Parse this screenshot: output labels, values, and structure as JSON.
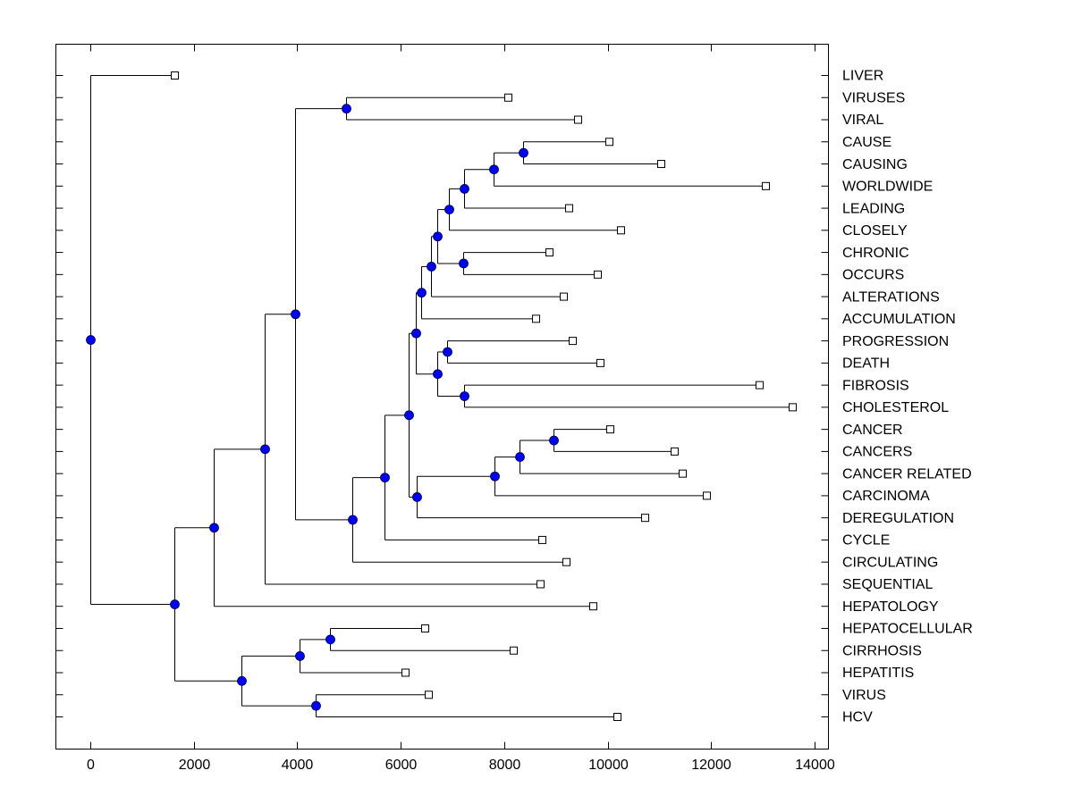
{
  "chart_data": {
    "type": "dendrogram",
    "title": "",
    "xlabel": "",
    "ylabel": "",
    "xlim": [
      -700,
      14250
    ],
    "x_ticks": [
      0,
      2000,
      4000,
      6000,
      8000,
      10000,
      12000,
      14000
    ],
    "x_tick_labels": [
      "0",
      "2000",
      "4000",
      "6000",
      "8000",
      "10000",
      "12000",
      "14000"
    ],
    "grid": false,
    "node_color": "#0000ff",
    "leaf_marker": "open-square",
    "leaves": [
      {
        "label": "LIVER",
        "x": 1625
      },
      {
        "label": "VIRUSES",
        "x": 8070
      },
      {
        "label": "VIRAL",
        "x": 9420
      },
      {
        "label": "CAUSE",
        "x": 10025
      },
      {
        "label": "CAUSING",
        "x": 11030
      },
      {
        "label": "WORLDWIDE",
        "x": 13050
      },
      {
        "label": "LEADING",
        "x": 9245
      },
      {
        "label": "CLOSELY",
        "x": 10250
      },
      {
        "label": "CHRONIC",
        "x": 8865
      },
      {
        "label": "OCCURS",
        "x": 9800
      },
      {
        "label": "ALTERATIONS",
        "x": 9145
      },
      {
        "label": "ACCUMULATION",
        "x": 8605
      },
      {
        "label": "PROGRESSION",
        "x": 9315
      },
      {
        "label": "DEATH",
        "x": 9850
      },
      {
        "label": "FIBROSIS",
        "x": 12930
      },
      {
        "label": "CHOLESTEROL",
        "x": 13565
      },
      {
        "label": "CANCER",
        "x": 10040
      },
      {
        "label": "CANCERS",
        "x": 11285
      },
      {
        "label": "CANCER RELATED",
        "x": 11440
      },
      {
        "label": "CARCINOMA",
        "x": 11910
      },
      {
        "label": "DEREGULATION",
        "x": 10715
      },
      {
        "label": "CYCLE",
        "x": 8730
      },
      {
        "label": "CIRCULATING",
        "x": 9195
      },
      {
        "label": "SEQUENTIAL",
        "x": 8695
      },
      {
        "label": "HEPATOLOGY",
        "x": 9715
      },
      {
        "label": "HEPATOCELLULAR",
        "x": 6465
      },
      {
        "label": "CIRRHOSIS",
        "x": 8175
      },
      {
        "label": "HEPATITIS",
        "x": 6085
      },
      {
        "label": "VIRUS",
        "x": 6535
      },
      {
        "label": "HCV",
        "x": 10180
      }
    ],
    "nodes": [
      {
        "id": "n_cause_causing",
        "x": 8370,
        "children": [
          "CAUSE",
          "CAUSING"
        ]
      },
      {
        "id": "n_worldwide",
        "x": 7800,
        "children": [
          "n_cause_causing",
          "WORLDWIDE"
        ]
      },
      {
        "id": "n_leading",
        "x": 7220,
        "children": [
          "n_worldwide",
          "LEADING"
        ]
      },
      {
        "id": "n_closely",
        "x": 6930,
        "children": [
          "n_leading",
          "CLOSELY"
        ]
      },
      {
        "id": "n_chronic_occurs",
        "x": 7210,
        "children": [
          "CHRONIC",
          "OCCURS"
        ]
      },
      {
        "id": "n_a1",
        "x": 6700,
        "children": [
          "n_closely",
          "n_chronic_occurs"
        ]
      },
      {
        "id": "n_alterations",
        "x": 6580,
        "children": [
          "n_a1",
          "ALTERATIONS"
        ]
      },
      {
        "id": "n_accumulation",
        "x": 6400,
        "children": [
          "n_alterations",
          "ACCUMULATION"
        ]
      },
      {
        "id": "n_prog_death",
        "x": 6900,
        "children": [
          "PROGRESSION",
          "DEATH"
        ]
      },
      {
        "id": "n_fib_chol",
        "x": 7220,
        "children": [
          "FIBROSIS",
          "CHOLESTEROL"
        ]
      },
      {
        "id": "n_b1",
        "x": 6700,
        "children": [
          "n_prog_death",
          "n_fib_chol"
        ]
      },
      {
        "id": "n_ab",
        "x": 6290,
        "children": [
          "n_accumulation",
          "n_b1"
        ]
      },
      {
        "id": "n_cancer_cancers",
        "x": 8960,
        "children": [
          "CANCER",
          "CANCERS"
        ]
      },
      {
        "id": "n_cancer_related",
        "x": 8290,
        "children": [
          "n_cancer_cancers",
          "CANCER RELATED"
        ]
      },
      {
        "id": "n_carcinoma",
        "x": 7810,
        "children": [
          "n_cancer_related",
          "CARCINOMA"
        ]
      },
      {
        "id": "n_deregulation",
        "x": 6300,
        "children": [
          "n_carcinoma",
          "DEREGULATION"
        ]
      },
      {
        "id": "n_abc",
        "x": 6145,
        "children": [
          "n_ab",
          "n_deregulation"
        ]
      },
      {
        "id": "n_cycle",
        "x": 5680,
        "children": [
          "n_abc",
          "CYCLE"
        ]
      },
      {
        "id": "n_circulating",
        "x": 5060,
        "children": [
          "n_cycle",
          "CIRCULATING"
        ]
      },
      {
        "id": "n_viruses_viral",
        "x": 4940,
        "children": [
          "VIRUSES",
          "VIRAL"
        ]
      },
      {
        "id": "n_upper",
        "x": 3950,
        "children": [
          "n_viruses_viral",
          "n_circulating"
        ]
      },
      {
        "id": "n_sequential",
        "x": 3370,
        "children": [
          "n_upper",
          "SEQUENTIAL"
        ]
      },
      {
        "id": "n_hepatology",
        "x": 2380,
        "children": [
          "n_sequential",
          "HEPATOLOGY"
        ]
      },
      {
        "id": "n_hepatocell_cirr",
        "x": 4640,
        "children": [
          "HEPATOCELLULAR",
          "CIRRHOSIS"
        ]
      },
      {
        "id": "n_hepatitis",
        "x": 4050,
        "children": [
          "n_hepatocell_cirr",
          "HEPATITIS"
        ]
      },
      {
        "id": "n_virus_hcv",
        "x": 4350,
        "children": [
          "VIRUS",
          "HCV"
        ]
      },
      {
        "id": "n_lower",
        "x": 2920,
        "children": [
          "n_hepatitis",
          "n_virus_hcv"
        ]
      },
      {
        "id": "n_main",
        "x": 1625,
        "children": [
          "n_hepatology",
          "n_lower"
        ]
      },
      {
        "id": "n_root",
        "x": 0,
        "children": [
          "LIVER",
          "n_main"
        ]
      }
    ]
  }
}
